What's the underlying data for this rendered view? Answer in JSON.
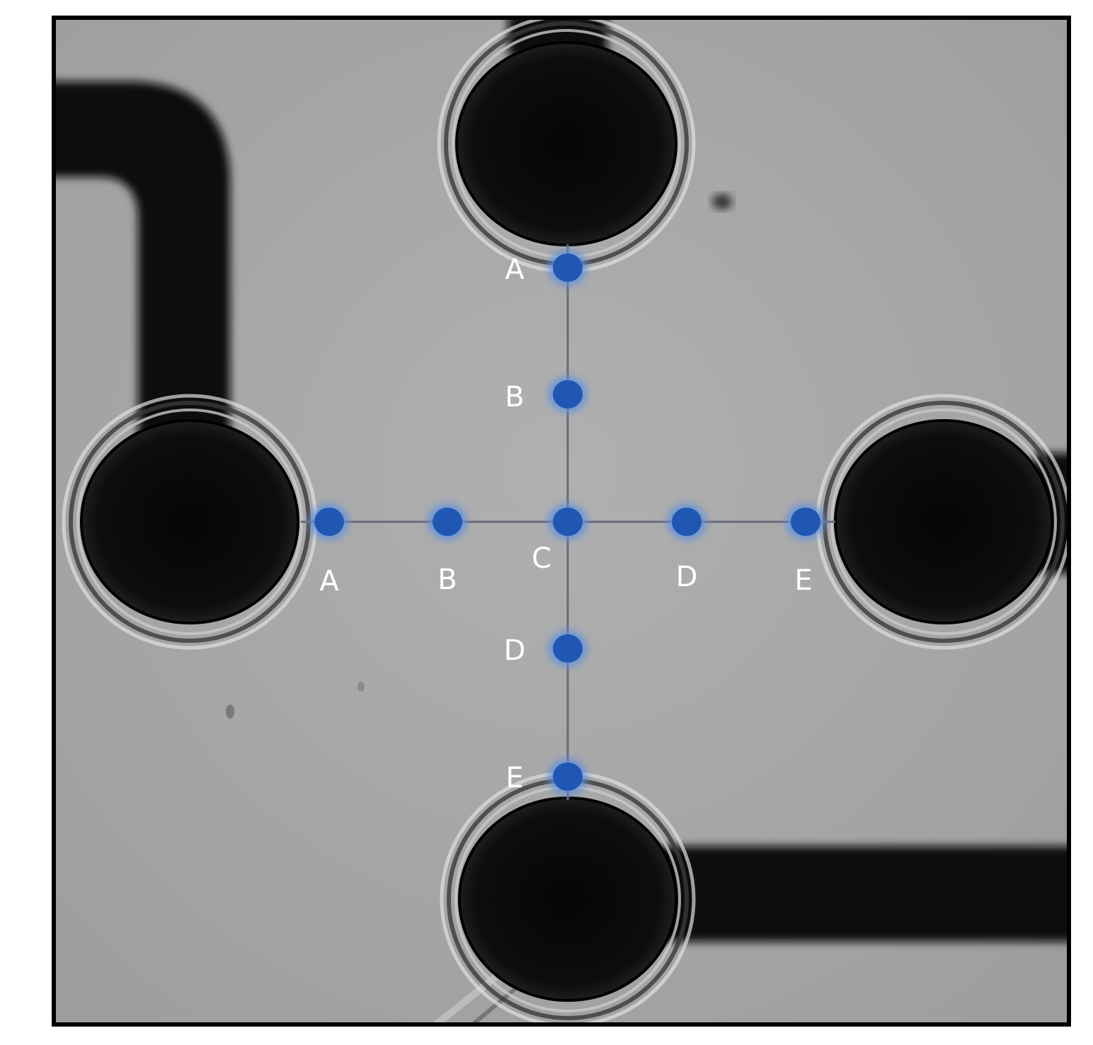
{
  "figure": {
    "frame_color": "#000000",
    "background_color": "#a6a6a6",
    "post_color": "#0a0a0a",
    "marker_color": "#1f57b3",
    "line_color": "#6b6b78"
  },
  "vertical_axis": {
    "points": [
      {
        "label": "A"
      },
      {
        "label": "B"
      },
      {
        "label": "D"
      },
      {
        "label": "E"
      }
    ]
  },
  "horizontal_axis": {
    "points": [
      {
        "label": "A"
      },
      {
        "label": "B"
      },
      {
        "label": "C"
      },
      {
        "label": "D"
      },
      {
        "label": "E"
      }
    ]
  }
}
